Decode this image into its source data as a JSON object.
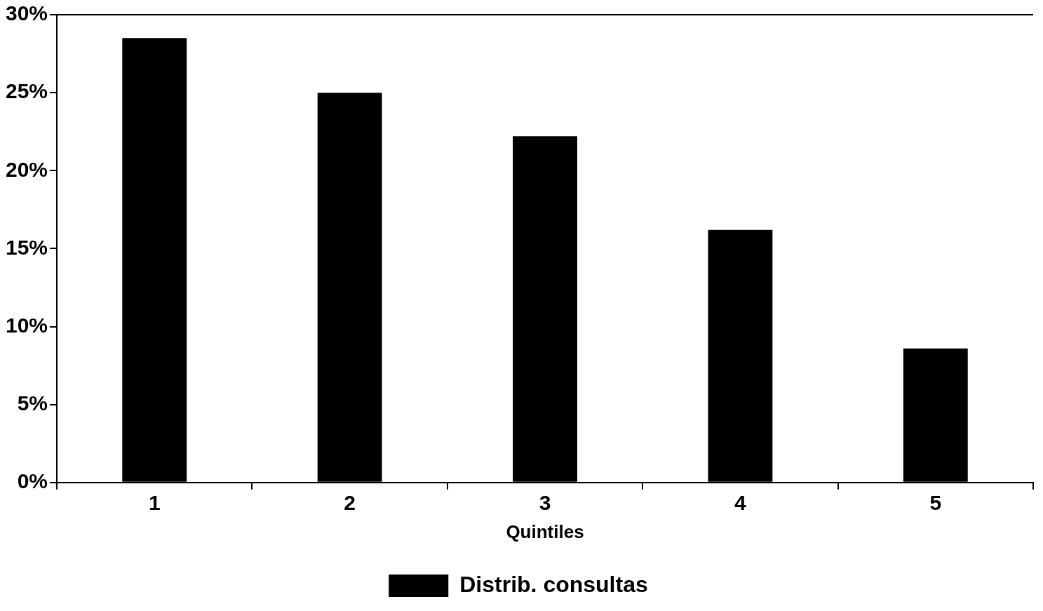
{
  "chart_data": {
    "type": "bar",
    "xlabel": "Quintiles",
    "categories": [
      "1",
      "2",
      "3",
      "4",
      "5"
    ],
    "series": [
      {
        "name": "Distrib. consultas",
        "color": "#000000",
        "values": [
          28.5,
          25.0,
          22.2,
          16.2,
          8.6
        ]
      }
    ],
    "ylim": [
      0,
      30
    ],
    "yticks": [
      {
        "value": 0,
        "label": "0%"
      },
      {
        "value": 5,
        "label": "5%"
      },
      {
        "value": 10,
        "label": "10%"
      },
      {
        "value": 15,
        "label": "15%"
      },
      {
        "value": 20,
        "label": "20%"
      },
      {
        "value": 25,
        "label": "25%"
      },
      {
        "value": 30,
        "label": "30%"
      }
    ],
    "grid": false,
    "legend": "bottom"
  }
}
